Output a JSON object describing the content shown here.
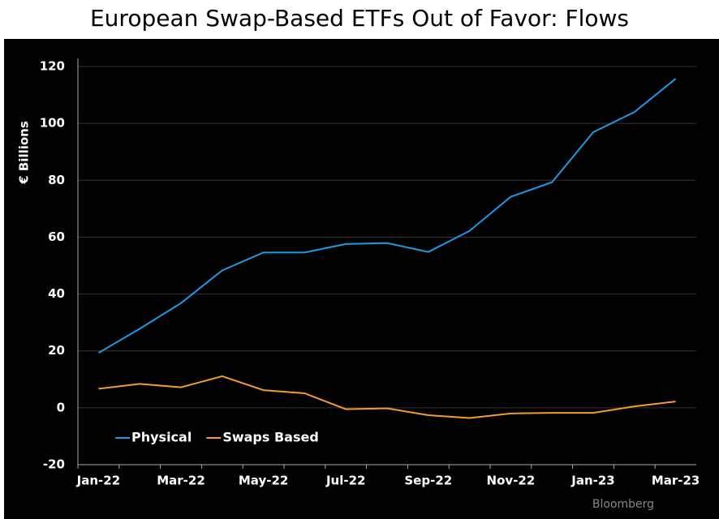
{
  "chart_data": {
    "type": "line",
    "title": "European Swap-Based ETFs Out of Favor: Flows",
    "y_label": "€ Billions",
    "source": "Bloomberg",
    "categories": [
      "Jan-22",
      null,
      "Mar-22",
      null,
      "May-22",
      null,
      "Jul-22",
      null,
      "Sep-22",
      null,
      "Nov-22",
      null,
      "Jan-23",
      null,
      "Mar-23"
    ],
    "series": [
      {
        "name": "Physical",
        "color": "#1a9be6",
        "values": [
          19.3,
          27.8,
          36.8,
          48.3,
          54.6,
          54.6,
          57.6,
          57.9,
          54.8,
          62.2,
          74.2,
          79.3,
          96.9,
          104,
          115.7
        ]
      },
      {
        "name": "Swaps Based",
        "color": "#f39c26",
        "values": [
          6.7,
          8.4,
          7.2,
          11.1,
          6.2,
          5.1,
          -0.5,
          -0.2,
          -2.6,
          -3.6,
          -2,
          -1.8,
          -1.8,
          0.5,
          2.2
        ]
      }
    ],
    "ylim": [
      -20,
      120
    ],
    "yticks": [
      -20,
      0,
      20,
      40,
      60,
      80,
      100,
      120
    ],
    "grid": true,
    "legend": "lower left"
  }
}
